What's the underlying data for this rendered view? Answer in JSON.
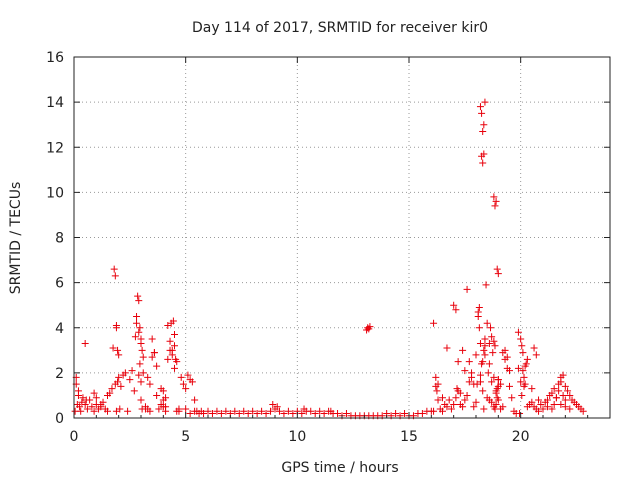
{
  "chart_data": {
    "type": "scatter",
    "title": "Day 114 of 2017, SRMTID for receiver kir0",
    "xlabel": "GPS time / hours",
    "ylabel": "SRMTID / TECUs",
    "xlim": [
      0,
      24
    ],
    "ylim": [
      0,
      16
    ],
    "xticks": [
      0,
      5,
      10,
      15,
      20
    ],
    "yticks": [
      0,
      2,
      4,
      6,
      8,
      10,
      12,
      14,
      16
    ],
    "grid": true,
    "marker": "plus",
    "color": "#e8000b",
    "series": [
      {
        "name": "SRMTID",
        "x": [
          0.05,
          0.1,
          0.15,
          0.2,
          0.25,
          0.3,
          0.35,
          0.4,
          0.5,
          0.6,
          0.7,
          0.8,
          0.9,
          1.0,
          1.1,
          1.2,
          1.3,
          1.4,
          1.5,
          0.1,
          0.2,
          0.5,
          0.55,
          0.9,
          1.0,
          1.2,
          1.5,
          1.6,
          1.7,
          1.75,
          1.8,
          1.85,
          1.9,
          1.95,
          2.0,
          1.85,
          1.9,
          1.9,
          1.95,
          2.0,
          2.05,
          2.1,
          2.2,
          2.3,
          2.4,
          2.5,
          2.6,
          2.7,
          2.75,
          2.8,
          2.85,
          2.9,
          2.95,
          3.0,
          3.05,
          3.1,
          2.9,
          2.95,
          3.0,
          3.05,
          2.8,
          2.9,
          3.0,
          3.1,
          3.2,
          3.3,
          3.4,
          3.5,
          3.6,
          3.7,
          3.8,
          3.9,
          4.0,
          4.1,
          4.2,
          4.3,
          4.4,
          4.5,
          4.6,
          4.7,
          3.3,
          3.4,
          3.5,
          3.6,
          3.7,
          4.2,
          4.3,
          4.35,
          4.4,
          4.45,
          4.5,
          4.55,
          4.6,
          4.0,
          4.1,
          4.5,
          3.9,
          4.0,
          4.1,
          3.0,
          3.2,
          4.7,
          4.8,
          4.9,
          5.0,
          5.1,
          5.2,
          5.3,
          5.4,
          5.5,
          5.6,
          5.7,
          5.0,
          5.2,
          5.4,
          5.8,
          6.0,
          6.2,
          6.4,
          6.6,
          6.8,
          7.0,
          7.2,
          7.4,
          7.6,
          7.8,
          8.0,
          8.2,
          8.4,
          8.6,
          8.8,
          9.0,
          9.2,
          9.4,
          9.6,
          9.8,
          10.0,
          10.2,
          10.4,
          10.6,
          10.8,
          11.0,
          11.2,
          11.4,
          11.6,
          11.8,
          12.0,
          12.2,
          12.4,
          12.6,
          12.8,
          13.0,
          13.2,
          13.4,
          13.6,
          13.8,
          14.0,
          14.2,
          14.4,
          14.6,
          14.8,
          15.0,
          15.2,
          15.4,
          15.6,
          15.8,
          16.0,
          8.9,
          9.1,
          10.3,
          11.5,
          13.1,
          13.15,
          13.2,
          13.25,
          16.1,
          16.2,
          16.3,
          16.4,
          16.5,
          16.6,
          16.7,
          16.8,
          16.9,
          17.0,
          17.1,
          17.2,
          17.3,
          17.4,
          17.5,
          17.6,
          17.7,
          17.8,
          17.9,
          18.0,
          16.2,
          16.25,
          16.3,
          16.1,
          16.5,
          16.7,
          17.0,
          17.1,
          17.15,
          17.2,
          17.3,
          17.4,
          17.5,
          17.6,
          17.7,
          17.8,
          17.9,
          18.0,
          18.05,
          18.1,
          18.15,
          18.2,
          18.25,
          18.3,
          18.35,
          18.4,
          18.1,
          18.15,
          18.2,
          18.25,
          18.3,
          18.35,
          18.4,
          18.2,
          18.25,
          18.3,
          18.35,
          18.4,
          18.2,
          18.3,
          18.35,
          18.4,
          18.45,
          18.5,
          18.55,
          18.6,
          18.65,
          18.7,
          18.75,
          18.8,
          18.85,
          18.9,
          18.95,
          19.0,
          18.8,
          18.85,
          18.9,
          18.8,
          18.85,
          18.9,
          18.95,
          19.0,
          18.95,
          19.0,
          18.6,
          18.7,
          18.5,
          18.6,
          18.7,
          18.8,
          18.9,
          19.0,
          19.1,
          19.2,
          19.3,
          19.4,
          19.5,
          19.6,
          19.7,
          19.8,
          19.9,
          19.0,
          19.1,
          19.2,
          19.3,
          19.4,
          19.5,
          19.9,
          20.0,
          20.05,
          20.1,
          20.15,
          20.2,
          20.25,
          20.3,
          20.4,
          20.5,
          20.6,
          20.7,
          20.8,
          20.0,
          20.1,
          20.2,
          20.3,
          20.5,
          20.6,
          20.7,
          20.8,
          19.95,
          20.05,
          20.15,
          20.9,
          21.0,
          21.1,
          21.2,
          21.3,
          21.4,
          21.5,
          21.6,
          21.7,
          21.8,
          21.9,
          22.0,
          22.1,
          22.2,
          22.3,
          22.4,
          22.5,
          22.6,
          22.7,
          22.8,
          21.5,
          21.6,
          21.7,
          21.8,
          21.9,
          22.0,
          21.2,
          21.4,
          21.8,
          22.0,
          22.2
        ],
        "y": [
          0.3,
          1.8,
          0.6,
          1.2,
          0.5,
          0.3,
          0.7,
          0.9,
          0.6,
          0.4,
          0.8,
          0.5,
          0.3,
          0.6,
          0.4,
          0.5,
          0.7,
          0.4,
          0.3,
          1.5,
          1.0,
          3.3,
          0.8,
          1.1,
          0.9,
          0.6,
          1.0,
          1.1,
          1.3,
          3.1,
          6.6,
          6.3,
          4.1,
          3.0,
          2.8,
          1.5,
          0.3,
          4.0,
          1.6,
          1.8,
          0.4,
          1.4,
          1.9,
          2.0,
          0.3,
          1.7,
          2.1,
          1.2,
          3.6,
          4.5,
          5.4,
          5.2,
          4.0,
          3.5,
          3.0,
          2.7,
          1.9,
          2.4,
          1.6,
          0.4,
          4.2,
          3.8,
          3.3,
          2.0,
          0.5,
          1.8,
          1.5,
          2.7,
          2.9,
          1.0,
          0.4,
          1.3,
          0.5,
          0.3,
          4.1,
          3.4,
          3.0,
          3.7,
          2.5,
          0.4,
          0.4,
          0.3,
          3.5,
          2.9,
          2.3,
          2.6,
          3.0,
          4.2,
          2.8,
          4.3,
          3.2,
          2.6,
          0.3,
          1.2,
          0.9,
          2.2,
          0.6,
          0.8,
          0.5,
          0.8,
          0.4,
          0.3,
          1.8,
          1.5,
          1.3,
          1.9,
          1.7,
          1.6,
          0.8,
          0.3,
          0.2,
          0.3,
          0.4,
          0.2,
          0.3,
          0.2,
          0.3,
          0.2,
          0.3,
          0.2,
          0.3,
          0.2,
          0.3,
          0.2,
          0.3,
          0.2,
          0.3,
          0.2,
          0.3,
          0.2,
          0.3,
          0.4,
          0.3,
          0.2,
          0.3,
          0.2,
          0.3,
          0.2,
          0.3,
          0.3,
          0.2,
          0.3,
          0.2,
          0.3,
          0.2,
          0.2,
          0.1,
          0.2,
          0.1,
          0.1,
          0.1,
          0.1,
          0.1,
          0.1,
          0.1,
          0.1,
          0.2,
          0.1,
          0.2,
          0.1,
          0.2,
          0.1,
          0.1,
          0.2,
          0.2,
          0.3,
          0.3,
          0.6,
          0.5,
          0.4,
          0.3,
          3.9,
          4.0,
          3.95,
          4.05,
          4.2,
          1.8,
          1.5,
          0.4,
          0.3,
          0.6,
          0.5,
          0.8,
          0.4,
          0.6,
          0.9,
          1.2,
          0.6,
          0.5,
          0.8,
          1.0,
          1.6,
          2.0,
          1.5,
          0.7,
          1.4,
          1.2,
          0.8,
          0.3,
          0.9,
          3.1,
          5.0,
          4.8,
          1.3,
          2.5,
          1.1,
          3.0,
          2.1,
          5.7,
          2.5,
          1.8,
          0.5,
          2.8,
          1.5,
          4.5,
          4.9,
          13.8,
          13.5,
          12.7,
          13.0,
          14.0,
          4.7,
          4.0,
          1.6,
          11.6,
          11.3,
          11.7,
          2.8,
          3.3,
          2.4,
          1.2,
          0.4,
          3.2,
          1.9,
          2.5,
          3.0,
          3.5,
          5.9,
          4.2,
          2.0,
          3.3,
          4.0,
          3.6,
          2.9,
          9.8,
          9.4,
          9.6,
          6.6,
          6.4,
          0.5,
          0.4,
          0.6,
          3.4,
          3.2,
          1.1,
          0.9,
          1.7,
          1.3,
          1.4,
          0.8,
          0.7,
          0.9,
          2.4,
          1.6,
          1.8,
          1.2,
          0.8,
          0.4,
          2.9,
          2.6,
          2.2,
          1.4,
          0.9,
          0.3,
          0.2,
          2.2,
          1.7,
          1.5,
          0.5,
          3.0,
          2.7,
          2.1,
          3.8,
          3.5,
          3.2,
          2.9,
          1.8,
          1.5,
          2.4,
          0.5,
          0.6,
          1.3,
          3.1,
          2.8,
          0.8,
          1.6,
          2.1,
          2.3,
          2.6,
          0.7,
          0.5,
          0.4,
          0.3,
          0.2,
          1.0,
          1.4,
          0.6,
          0.4,
          0.7,
          0.8,
          1.0,
          1.1,
          1.3,
          0.9,
          1.5,
          1.8,
          1.9,
          1.4,
          1.2,
          1.0,
          0.8,
          0.7,
          0.6,
          0.5,
          0.4,
          0.3,
          0.6,
          0.9,
          1.2,
          1.6,
          1.0,
          0.8,
          0.5,
          0.4,
          0.6,
          0.5,
          0.4
        ]
      }
    ]
  }
}
